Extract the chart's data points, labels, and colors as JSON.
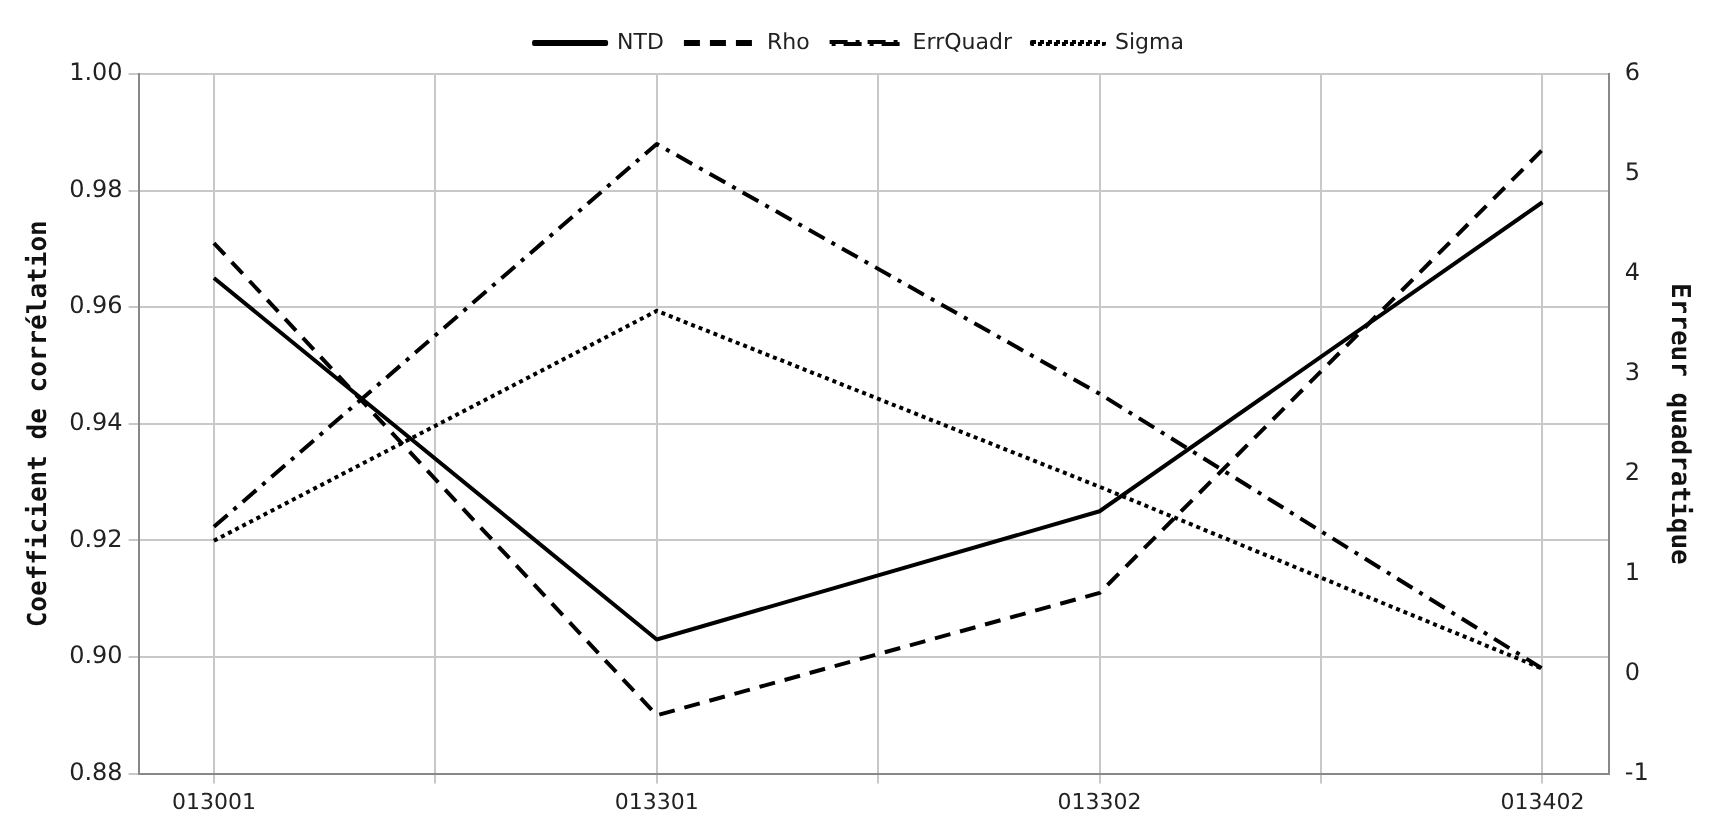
{
  "chart_data": {
    "type": "line",
    "categories": [
      "013001",
      "013301",
      "013302",
      "013402"
    ],
    "ylabel": "Coefficient de corrélation",
    "y2label": "Erreur quadratique",
    "series": [
      {
        "name": "NTD",
        "color": "#000000",
        "line_style": "solid",
        "values": [
          0.965,
          0.903,
          0.925,
          0.978
        ]
      },
      {
        "name": "Rho",
        "color": "#000000",
        "line_style": "dashed",
        "values": [
          0.971,
          0.89,
          0.911,
          0.987
        ]
      },
      {
        "name": "ErrQuadr",
        "color": "#000000",
        "line_style": "dashdot",
        "axis": "y2",
        "values": [
          1.47,
          5.3,
          2.8,
          0.05
        ]
      },
      {
        "name": "Sigma",
        "color": "#000000",
        "line_style": "dotted",
        "axis": "y2",
        "values": [
          1.33,
          3.63,
          1.87,
          0.05
        ]
      }
    ],
    "ylim": [
      0.88,
      1.0
    ],
    "yticks": [
      0.88,
      {
        "value": 0.9,
        "label": "0.90"
      },
      0.92,
      0.94,
      0.96,
      0.98,
      {
        "value": 1.0,
        "label": "1.00"
      }
    ],
    "y2lim": [
      -1,
      6
    ],
    "y2ticks": [
      -1,
      0,
      1,
      2,
      3,
      4,
      5,
      6
    ],
    "grid": true,
    "legend": "top",
    "marker": "none"
  }
}
